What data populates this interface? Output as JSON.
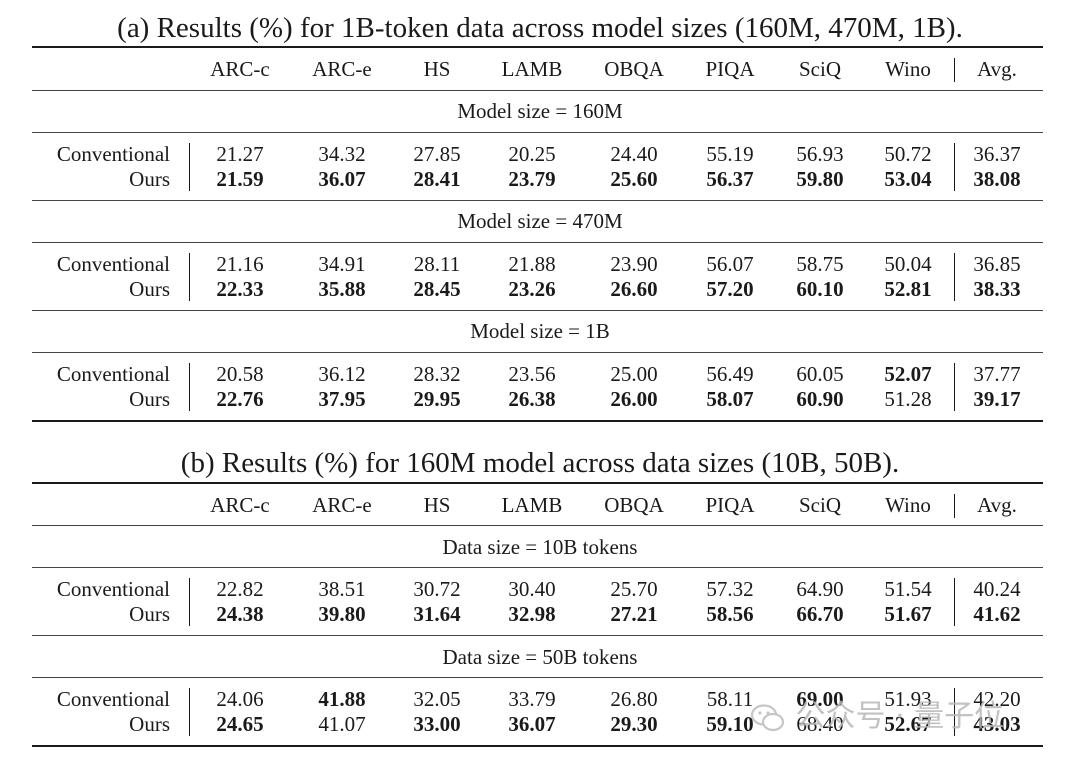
{
  "tables": [
    {
      "caption": "(a) Results (%) for 1B-token data across model sizes (160M, 470M, 1B).",
      "columns": [
        "ARC-c",
        "ARC-e",
        "HS",
        "LAMB",
        "OBQA",
        "PIQA",
        "SciQ",
        "Wino",
        "Avg."
      ],
      "sections": [
        {
          "title": "Model size = 160M",
          "rows": [
            {
              "method": "Conventional",
              "values": [
                "21.27",
                "34.32",
                "27.85",
                "20.25",
                "24.40",
                "55.19",
                "56.93",
                "50.72",
                "36.37"
              ],
              "bold": [
                false,
                false,
                false,
                false,
                false,
                false,
                false,
                false,
                false
              ]
            },
            {
              "method": "Ours",
              "values": [
                "21.59",
                "36.07",
                "28.41",
                "23.79",
                "25.60",
                "56.37",
                "59.80",
                "53.04",
                "38.08"
              ],
              "bold": [
                true,
                true,
                true,
                true,
                true,
                true,
                true,
                true,
                true
              ]
            }
          ]
        },
        {
          "title": "Model size = 470M",
          "rows": [
            {
              "method": "Conventional",
              "values": [
                "21.16",
                "34.91",
                "28.11",
                "21.88",
                "23.90",
                "56.07",
                "58.75",
                "50.04",
                "36.85"
              ],
              "bold": [
                false,
                false,
                false,
                false,
                false,
                false,
                false,
                false,
                false
              ]
            },
            {
              "method": "Ours",
              "values": [
                "22.33",
                "35.88",
                "28.45",
                "23.26",
                "26.60",
                "57.20",
                "60.10",
                "52.81",
                "38.33"
              ],
              "bold": [
                true,
                true,
                true,
                true,
                true,
                true,
                true,
                true,
                true
              ]
            }
          ]
        },
        {
          "title": "Model size = 1B",
          "rows": [
            {
              "method": "Conventional",
              "values": [
                "20.58",
                "36.12",
                "28.32",
                "23.56",
                "25.00",
                "56.49",
                "60.05",
                "52.07",
                "37.77"
              ],
              "bold": [
                false,
                false,
                false,
                false,
                false,
                false,
                false,
                true,
                false
              ]
            },
            {
              "method": "Ours",
              "values": [
                "22.76",
                "37.95",
                "29.95",
                "26.38",
                "26.00",
                "58.07",
                "60.90",
                "51.28",
                "39.17"
              ],
              "bold": [
                true,
                true,
                true,
                true,
                true,
                true,
                true,
                false,
                true
              ]
            }
          ]
        }
      ]
    },
    {
      "caption": "(b) Results (%) for 160M model across data sizes (10B, 50B).",
      "columns": [
        "ARC-c",
        "ARC-e",
        "HS",
        "LAMB",
        "OBQA",
        "PIQA",
        "SciQ",
        "Wino",
        "Avg."
      ],
      "sections": [
        {
          "title": "Data size = 10B tokens",
          "rows": [
            {
              "method": "Conventional",
              "values": [
                "22.82",
                "38.51",
                "30.72",
                "30.40",
                "25.70",
                "57.32",
                "64.90",
                "51.54",
                "40.24"
              ],
              "bold": [
                false,
                false,
                false,
                false,
                false,
                false,
                false,
                false,
                false
              ]
            },
            {
              "method": "Ours",
              "values": [
                "24.38",
                "39.80",
                "31.64",
                "32.98",
                "27.21",
                "58.56",
                "66.70",
                "51.67",
                "41.62"
              ],
              "bold": [
                true,
                true,
                true,
                true,
                true,
                true,
                true,
                true,
                true
              ]
            }
          ]
        },
        {
          "title": "Data size = 50B tokens",
          "rows": [
            {
              "method": "Conventional",
              "values": [
                "24.06",
                "41.88",
                "32.05",
                "33.79",
                "26.80",
                "58.11",
                "69.00",
                "51.93",
                "42.20"
              ],
              "bold": [
                false,
                true,
                false,
                false,
                false,
                false,
                true,
                false,
                false
              ]
            },
            {
              "method": "Ours",
              "values": [
                "24.65",
                "41.07",
                "33.00",
                "36.07",
                "29.30",
                "59.10",
                "68.40",
                "52.67",
                "43.03"
              ],
              "bold": [
                true,
                false,
                true,
                true,
                true,
                true,
                false,
                true,
                true
              ]
            }
          ]
        }
      ]
    }
  ],
  "watermark": {
    "text": "公众号 · 量子位",
    "icon": "wechat-icon"
  }
}
